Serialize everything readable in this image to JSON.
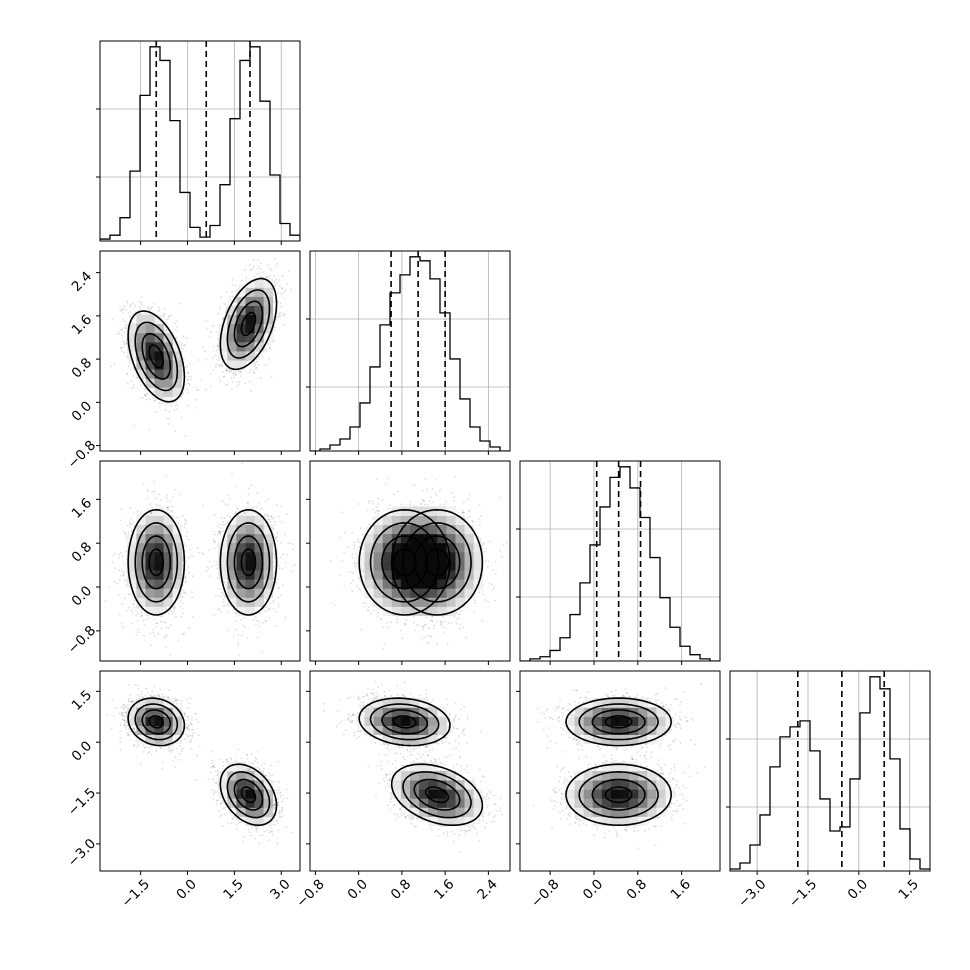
{
  "chart_data": {
    "type": "corner",
    "title": "",
    "grid": true,
    "parameters": [
      {
        "index": 0,
        "range": [
          -2.8,
          3.6
        ],
        "ticks": [
          -1.5,
          0.0,
          1.5,
          3.0
        ],
        "tick_labels": [
          "−1.5",
          "0.0",
          "1.5",
          "3.0"
        ],
        "quantiles": [
          -1.0,
          0.6,
          2.0
        ],
        "histogram": {
          "edges": [
            -2.8,
            -2.48,
            -2.16,
            -1.84,
            -1.52,
            -1.2,
            -0.88,
            -0.56,
            -0.24,
            0.08,
            0.4,
            0.72,
            1.04,
            1.36,
            1.68,
            2.0,
            2.32,
            2.64,
            2.96,
            3.28,
            3.6
          ],
          "counts": [
            1,
            3,
            12,
            36,
            75,
            100,
            93,
            62,
            25,
            7,
            2,
            8,
            29,
            63,
            93,
            100,
            72,
            34,
            9,
            3
          ]
        }
      },
      {
        "index": 1,
        "range": [
          -0.9,
          2.8
        ],
        "ticks": [
          -0.8,
          0.0,
          0.8,
          1.6,
          2.4
        ],
        "tick_labels": [
          "−0.8",
          "0.0",
          "0.8",
          "1.6",
          "2.4"
        ],
        "quantiles": [
          0.6,
          1.1,
          1.6
        ],
        "histogram": {
          "edges": [
            -0.9,
            -0.715,
            -0.53,
            -0.345,
            -0.16,
            0.025,
            0.21,
            0.395,
            0.58,
            0.765,
            0.95,
            1.135,
            1.32,
            1.505,
            1.69,
            1.875,
            2.06,
            2.245,
            2.43,
            2.615,
            2.8
          ],
          "counts": [
            0,
            1,
            3,
            6,
            12,
            24,
            42,
            63,
            79,
            88,
            97,
            95,
            86,
            69,
            46,
            26,
            12,
            5,
            2,
            0
          ]
        }
      },
      {
        "index": 2,
        "range": [
          -1.35,
          2.3
        ],
        "ticks": [
          -0.8,
          0.0,
          0.8,
          1.6
        ],
        "tick_labels": [
          "−0.8",
          "0.0",
          "0.8",
          "1.6"
        ],
        "quantiles": [
          0.05,
          0.45,
          0.85
        ],
        "histogram": {
          "edges": [
            -1.35,
            -1.1675,
            -0.985,
            -0.8025,
            -0.62,
            -0.4375,
            -0.255,
            -0.0725,
            0.11,
            0.2925,
            0.475,
            0.6575,
            0.84,
            1.0225,
            1.205,
            1.3875,
            1.57,
            1.7525,
            1.935,
            2.1175,
            2.3
          ],
          "counts": [
            0,
            1,
            2,
            5,
            11,
            22,
            37,
            55,
            73,
            87,
            92,
            82,
            68,
            49,
            30,
            16,
            7,
            3,
            1,
            0
          ]
        }
      },
      {
        "index": 3,
        "range": [
          -3.8,
          2.1
        ],
        "ticks": [
          -3.0,
          -1.5,
          0.0,
          1.5
        ],
        "tick_labels": [
          "−3.0",
          "−1.5",
          "0.0",
          "1.5"
        ],
        "quantiles": [
          -1.8,
          -0.5,
          0.75
        ],
        "histogram": {
          "edges": [
            -3.8,
            -3.505,
            -3.21,
            -2.915,
            -2.62,
            -2.325,
            -2.03,
            -1.735,
            -1.44,
            -1.145,
            -0.85,
            -0.555,
            -0.26,
            0.035,
            0.33,
            0.625,
            0.92,
            1.215,
            1.51,
            1.805,
            2.1
          ],
          "counts": [
            1,
            4,
            13,
            28,
            52,
            67,
            72,
            75,
            60,
            36,
            20,
            22,
            46,
            79,
            97,
            91,
            56,
            21,
            6,
            1
          ]
        }
      }
    ],
    "clusters": {
      "weights": [
        0.5,
        0.5
      ],
      "means": [
        [
          -1.0,
          0.85,
          0.45,
          0.6
        ],
        [
          1.95,
          1.45,
          0.45,
          -1.55
        ]
      ],
      "sigmas": [
        [
          0.45,
          0.42,
          0.48,
          0.35
        ],
        [
          0.45,
          0.42,
          0.48,
          0.45
        ]
      ],
      "correlations": [
        {
          "pair": [
            1,
            0
          ],
          "values": [
            -0.45,
            0.45
          ]
        },
        {
          "pair": [
            2,
            0
          ],
          "values": [
            0.0,
            0.0
          ]
        },
        {
          "pair": [
            2,
            1
          ],
          "values": [
            0.0,
            0.0
          ]
        },
        {
          "pair": [
            3,
            0
          ],
          "values": [
            -0.15,
            -0.35
          ]
        },
        {
          "pair": [
            3,
            1
          ],
          "values": [
            -0.15,
            -0.35
          ]
        },
        {
          "pair": [
            3,
            2
          ],
          "values": [
            0.0,
            0.0
          ]
        }
      ]
    },
    "contour_levels_sigma": [
      0.5,
      1.0,
      1.5,
      2.0
    ]
  }
}
